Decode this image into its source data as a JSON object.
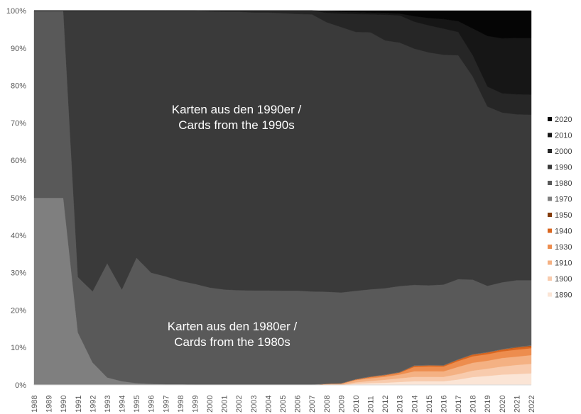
{
  "colors": {
    "1890": "#fbe5d6",
    "1900": "#f8cbad",
    "1910": "#f4b183",
    "1930": "#ed8d4e",
    "1940": "#d9661f",
    "1950": "#843c0c",
    "1970": "#7f7f7f",
    "1980": "#595959",
    "1990": "#3a3a3a",
    "2000": "#262626",
    "2010": "#161616",
    "2020": "#050505"
  },
  "chart_data": {
    "type": "area",
    "stacked": "percent",
    "ylim": [
      0,
      100
    ],
    "y_tick_labels": [
      "0%",
      "10%",
      "20%",
      "30%",
      "40%",
      "50%",
      "60%",
      "70%",
      "80%",
      "90%",
      "100%"
    ],
    "x": [
      "1988",
      "1989",
      "1990",
      "1991",
      "1992",
      "1993",
      "1994",
      "1995",
      "1996",
      "1997",
      "1998",
      "1999",
      "2000",
      "2001",
      "2002",
      "2003",
      "2004",
      "2005",
      "2006",
      "2007",
      "2008",
      "2009",
      "2010",
      "2011",
      "2012",
      "2013",
      "2014",
      "2015",
      "2016",
      "2017",
      "2018",
      "2019",
      "2020",
      "2021",
      "2022"
    ],
    "legend_position": "right",
    "legend_order": [
      "2020",
      "2010",
      "2000",
      "1990",
      "1980",
      "1970",
      "1950",
      "1940",
      "1930",
      "1910",
      "1900",
      "1890"
    ],
    "series": [
      {
        "name": "1890",
        "values": [
          0,
          0,
          0,
          0,
          0,
          0,
          0,
          0,
          0,
          0,
          0,
          0,
          0,
          0,
          0,
          0,
          0,
          0,
          0,
          0,
          0,
          0,
          0.3,
          0.5,
          0.6,
          0.8,
          1.0,
          1.0,
          1.0,
          1.5,
          2.2,
          2.5,
          2.8,
          3.0,
          3.2
        ]
      },
      {
        "name": "1900",
        "values": [
          0,
          0,
          0,
          0,
          0,
          0,
          0,
          0,
          0,
          0,
          0,
          0,
          0,
          0,
          0,
          0,
          0,
          0,
          0,
          0,
          0,
          0,
          0.4,
          0.6,
          0.8,
          1.0,
          1.2,
          1.2,
          1.2,
          1.5,
          1.8,
          2.0,
          2.2,
          2.5,
          2.6
        ]
      },
      {
        "name": "1910",
        "values": [
          0,
          0,
          0,
          0,
          0,
          0,
          0,
          0,
          0,
          0,
          0,
          0,
          0,
          0,
          0,
          0,
          0,
          0,
          0,
          0,
          0.2,
          0.3,
          0.6,
          0.7,
          0.8,
          1.0,
          1.5,
          1.5,
          1.5,
          2.0,
          2.2,
          2.2,
          2.3,
          2.3,
          2.4
        ]
      },
      {
        "name": "1930",
        "values": [
          0,
          0,
          0,
          0,
          0,
          0,
          0,
          0,
          0,
          0,
          0,
          0,
          0,
          0,
          0,
          0,
          0,
          0,
          0,
          0,
          0.1,
          0.1,
          0.2,
          0.3,
          0.4,
          0.5,
          1.2,
          1.3,
          1.3,
          1.6,
          1.8,
          1.8,
          1.8,
          1.9,
          1.9
        ]
      },
      {
        "name": "1940",
        "values": [
          0,
          0,
          0,
          0,
          0,
          0,
          0,
          0,
          0,
          0,
          0,
          0,
          0,
          0,
          0,
          0,
          0,
          0,
          0,
          0,
          0,
          0,
          0,
          0.1,
          0.1,
          0.1,
          0.3,
          0.3,
          0.3,
          0.4,
          0.5,
          0.5,
          0.5,
          0.6,
          0.6
        ]
      },
      {
        "name": "1950",
        "values": [
          0,
          0,
          0,
          0,
          0,
          0,
          0,
          0,
          0,
          0,
          0,
          0,
          0,
          0,
          0,
          0,
          0,
          0,
          0,
          0,
          0,
          0,
          0,
          0,
          0,
          0,
          0,
          0,
          0,
          0,
          0,
          0,
          0,
          0.1,
          0.1
        ]
      },
      {
        "name": "1970",
        "values": [
          50,
          50,
          50,
          14,
          6,
          2,
          1,
          0.5,
          0.3,
          0.2,
          0.2,
          0.1,
          0.1,
          0.1,
          0.1,
          0.1,
          0.1,
          0.1,
          0.1,
          0.1,
          0.1,
          0.1,
          0.1,
          0.1,
          0.1,
          0.1,
          0.1,
          0.1,
          0.1,
          0.1,
          0.1,
          0.1,
          0.1,
          0.1,
          0.1
        ]
      },
      {
        "name": "1980",
        "values": [
          50,
          50,
          50,
          14.8,
          19,
          30.5,
          24.5,
          33.5,
          29.7,
          28.8,
          27.6,
          26.9,
          25.9,
          25.4,
          25.2,
          25.2,
          25.2,
          25.2,
          25.2,
          24.9,
          24.5,
          24.2,
          23.6,
          23.3,
          23.2,
          23.1,
          21.8,
          21.5,
          21.9,
          22.1,
          20.8,
          18.3,
          18.1,
          18.3,
          17.9
        ]
      },
      {
        "name": "1990",
        "values": [
          0,
          0,
          0,
          71.2,
          75,
          67.5,
          74.5,
          66,
          70,
          71,
          72.2,
          73,
          73.7,
          74.2,
          74.4,
          74.4,
          74.4,
          74.4,
          74.2,
          74.1,
          72,
          70.9,
          69.3,
          68.8,
          66.6,
          65.5,
          64.0,
          62.9,
          62.5,
          61.8,
          56.7,
          49.6,
          46.0,
          45.6,
          45.5
        ]
      },
      {
        "name": "2000",
        "values": [
          0,
          0,
          0,
          0,
          0,
          0,
          0,
          0,
          0,
          0,
          0,
          0,
          0.2,
          0.3,
          0.3,
          0.5,
          0.5,
          0.7,
          0.9,
          1.0,
          2.5,
          3.6,
          4.8,
          4.8,
          6.9,
          7.3,
          7.3,
          7.3,
          7.1,
          6.4,
          5.9,
          5.5,
          5.2,
          5.5,
          5.5
        ]
      },
      {
        "name": "2010",
        "values": [
          0,
          0,
          0,
          0,
          0,
          0,
          0,
          0,
          0,
          0,
          0,
          0,
          0,
          0,
          0,
          0,
          0,
          0,
          0,
          0,
          0.5,
          0.5,
          0.5,
          0.5,
          0.5,
          0.5,
          1.5,
          2.0,
          2.6,
          3.0,
          7.5,
          14.0,
          14.9,
          15.5,
          15.6
        ]
      },
      {
        "name": "2020",
        "values": [
          0,
          0,
          0,
          0,
          0,
          0,
          0,
          0,
          0,
          0,
          0,
          0,
          0,
          0,
          0,
          0,
          0,
          0,
          0,
          0,
          0.1,
          0.3,
          0.4,
          0.5,
          0.6,
          0.8,
          1.5,
          2.0,
          2.3,
          2.9,
          5.0,
          7.0,
          7.5,
          7.5,
          7.5
        ]
      }
    ],
    "annotations": [
      {
        "lines": [
          "Karten aus den 1990er /",
          "Cards from the 1990s"
        ]
      },
      {
        "lines": [
          "Karten aus den 1980er /",
          "Cards from the 1980s"
        ]
      }
    ]
  }
}
